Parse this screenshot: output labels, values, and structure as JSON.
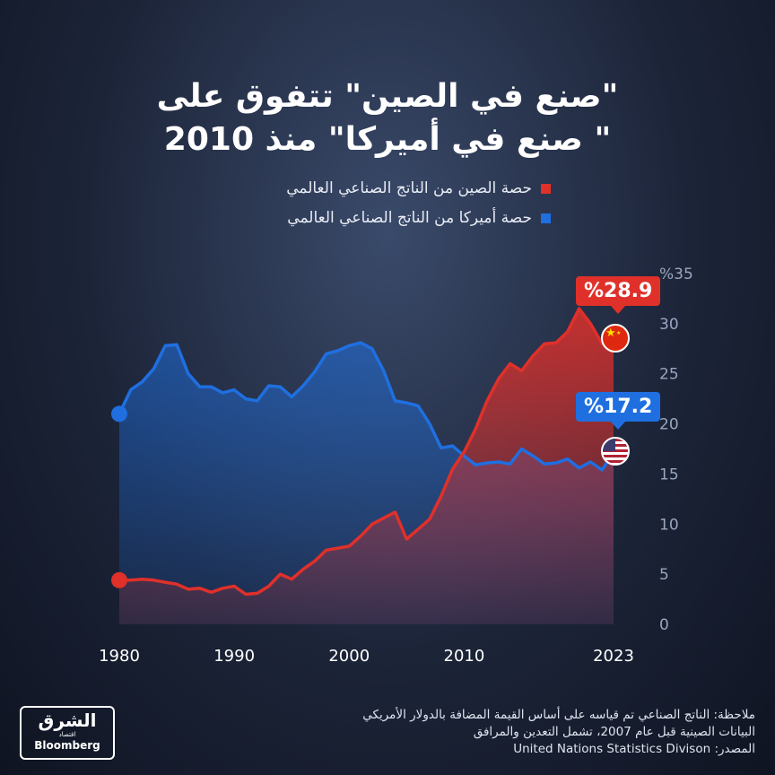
{
  "title_line1": "\"صنع في الصين\" تتفوق على",
  "title_line2": "\" صنع في أميركا\" منذ 2010",
  "legend": [
    {
      "label": "حصة الصين من الناتج الصناعي العالمي",
      "color": "#e0302a"
    },
    {
      "label": "حصة أميركا من الناتج الصناعي العالمي",
      "color": "#1f6fe0"
    }
  ],
  "callouts": {
    "china": "%28.9",
    "usa": "%17.2"
  },
  "notes": [
    "ملاحظة: الناتج الصناعي تم قياسه على أساس القيمة المضافة بالدولار الأمريكي",
    "البيانات الصينية قبل عام 2007، تشمل التعدين والمرافق",
    "المصدر: United Nations Statistics Divison"
  ],
  "logo": {
    "name": "الشرق",
    "sub": "اقتصاد",
    "brand": "Bloomberg"
  },
  "icons": {
    "china_flag": "china-flag-icon",
    "usa_flag": "usa-flag-icon"
  },
  "chart_data": {
    "type": "area",
    "x": [
      1980,
      1981,
      1982,
      1983,
      1984,
      1985,
      1986,
      1987,
      1988,
      1989,
      1990,
      1991,
      1992,
      1993,
      1994,
      1995,
      1996,
      1997,
      1998,
      1999,
      2000,
      2001,
      2002,
      2003,
      2004,
      2005,
      2006,
      2007,
      2008,
      2009,
      2010,
      2011,
      2012,
      2013,
      2014,
      2015,
      2016,
      2017,
      2018,
      2019,
      2020,
      2021,
      2022,
      2023
    ],
    "series": [
      {
        "name": "حصة الصين من الناتج الصناعي العالمي",
        "color": "#e0302a",
        "values": [
          4.4,
          4.4,
          4.5,
          4.4,
          4.2,
          4.0,
          3.5,
          3.6,
          3.2,
          3.6,
          3.8,
          3.0,
          3.1,
          3.8,
          5.0,
          4.5,
          5.5,
          6.3,
          7.4,
          7.6,
          7.8,
          8.8,
          10.0,
          10.6,
          11.2,
          8.5,
          9.5,
          10.5,
          12.8,
          15.5,
          17.2,
          19.5,
          22.3,
          24.5,
          26.0,
          25.3,
          26.8,
          28.0,
          28.1,
          29.2,
          31.5,
          30.0,
          28.0,
          28.9
        ]
      },
      {
        "name": "حصة أميركا من الناتج الصناعي العالمي",
        "color": "#1f6fe0",
        "values": [
          21.0,
          23.4,
          24.2,
          25.5,
          27.8,
          27.9,
          25.0,
          23.7,
          23.7,
          23.1,
          23.4,
          22.5,
          22.3,
          23.8,
          23.7,
          22.7,
          23.8,
          25.2,
          27.0,
          27.3,
          27.8,
          28.1,
          27.5,
          25.3,
          22.3,
          22.1,
          21.8,
          20.0,
          17.6,
          17.8,
          16.8,
          15.9,
          16.1,
          16.2,
          16.0,
          17.5,
          16.8,
          16.0,
          16.1,
          16.5,
          15.6,
          16.2,
          15.4,
          17.2
        ]
      }
    ],
    "xticks": [
      1980,
      1990,
      2000,
      2010,
      2023
    ],
    "yticks": [
      "0",
      "5",
      "10",
      "15",
      "20",
      "25",
      "30",
      "%35"
    ],
    "xlim": [
      1980,
      2023
    ],
    "ylim": [
      0,
      35
    ]
  }
}
